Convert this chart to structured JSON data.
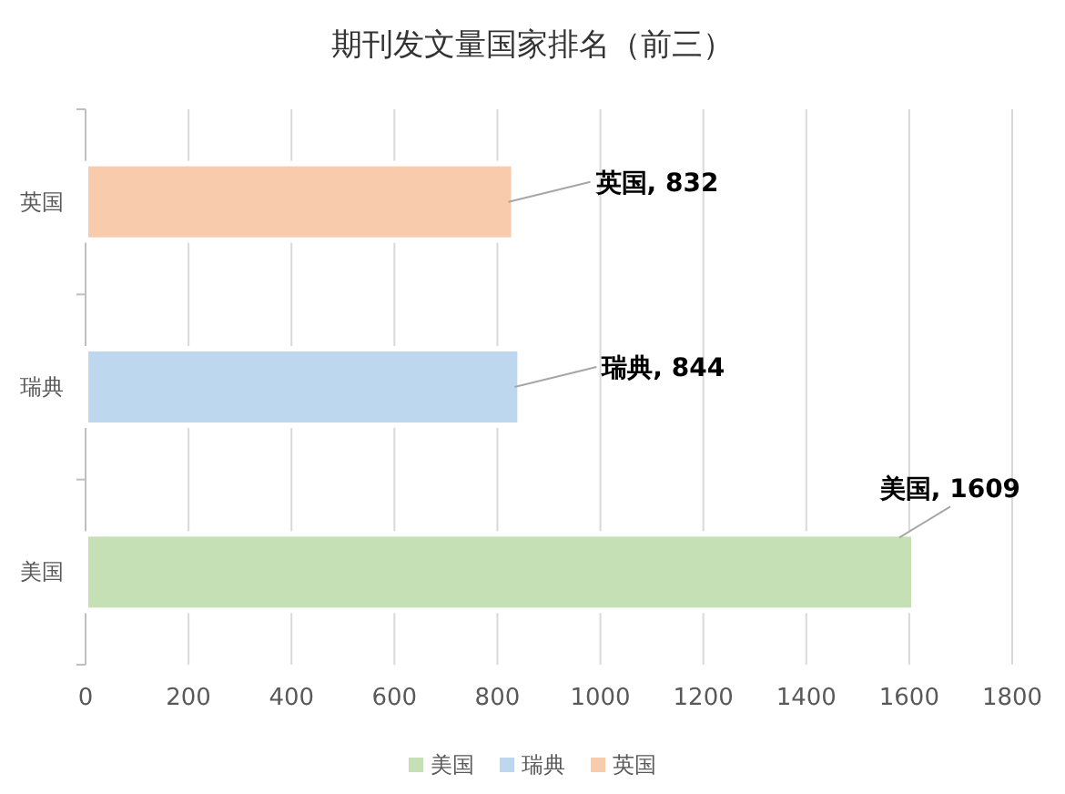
{
  "chart_data": {
    "type": "bar",
    "orientation": "horizontal",
    "title": "期刊发文量国家排名（前三）",
    "categories": [
      "英国",
      "瑞典",
      "美国"
    ],
    "series": [
      {
        "name": "美国",
        "color": "#c5e0b4",
        "values": [
          null,
          null,
          1609
        ],
        "value_labels": [
          null,
          null,
          "美国, 1609"
        ]
      },
      {
        "name": "瑞典",
        "color": "#bdd7ee",
        "values": [
          null,
          844,
          null
        ],
        "value_labels": [
          null,
          "瑞典, 844",
          null
        ]
      },
      {
        "name": "英国",
        "color": "#f8cbad",
        "values": [
          832,
          null,
          null
        ],
        "value_labels": [
          "英国, 832",
          null,
          null
        ]
      }
    ],
    "xlim": [
      0,
      1800
    ],
    "xticks": [
      0,
      200,
      400,
      600,
      800,
      1000,
      1200,
      1400,
      1600,
      1800
    ],
    "grid": "x",
    "legend": "bottom"
  }
}
